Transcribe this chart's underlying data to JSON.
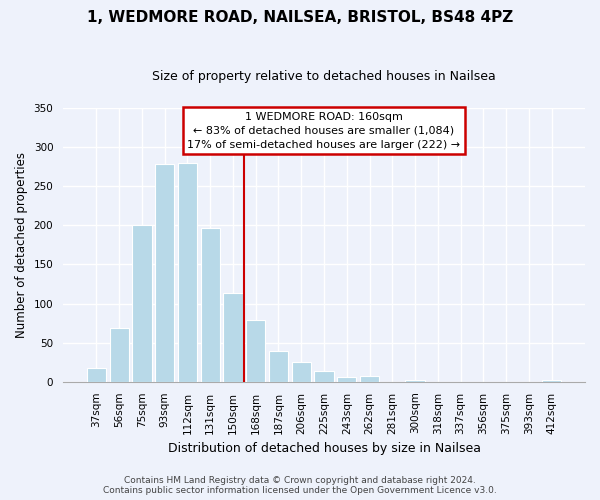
{
  "title": "1, WEDMORE ROAD, NAILSEA, BRISTOL, BS48 4PZ",
  "subtitle": "Size of property relative to detached houses in Nailsea",
  "xlabel": "Distribution of detached houses by size in Nailsea",
  "ylabel": "Number of detached properties",
  "bar_labels": [
    "37sqm",
    "56sqm",
    "75sqm",
    "93sqm",
    "112sqm",
    "131sqm",
    "150sqm",
    "168sqm",
    "187sqm",
    "206sqm",
    "225sqm",
    "243sqm",
    "262sqm",
    "281sqm",
    "300sqm",
    "318sqm",
    "337sqm",
    "356sqm",
    "375sqm",
    "393sqm",
    "412sqm"
  ],
  "bar_values": [
    18,
    69,
    200,
    278,
    279,
    196,
    114,
    79,
    40,
    25,
    14,
    6,
    8,
    0,
    2,
    0,
    0,
    0,
    0,
    0,
    2
  ],
  "bar_color": "#b8d9e8",
  "annotation_title": "1 WEDMORE ROAD: 160sqm",
  "annotation_line1": "← 83% of detached houses are smaller (1,084)",
  "annotation_line2": "17% of semi-detached houses are larger (222) →",
  "annotation_box_color": "#ffffff",
  "annotation_box_edge": "#cc0000",
  "vline_x": 6.5,
  "vline_color": "#cc0000",
  "footer_line1": "Contains HM Land Registry data © Crown copyright and database right 2024.",
  "footer_line2": "Contains public sector information licensed under the Open Government Licence v3.0.",
  "ylim": [
    0,
    350
  ],
  "background_color": "#eef2fb",
  "grid_color": "#ffffff",
  "title_fontsize": 11,
  "subtitle_fontsize": 9,
  "ylabel_fontsize": 8.5,
  "xlabel_fontsize": 9,
  "tick_fontsize": 7.5,
  "annotation_fontsize": 8,
  "footer_fontsize": 6.5
}
